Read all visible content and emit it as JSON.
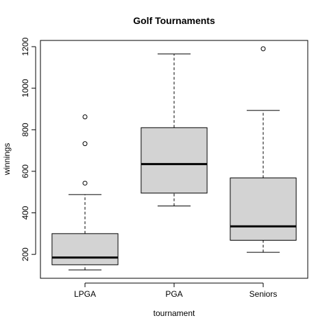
{
  "chart_data": {
    "type": "boxplot",
    "title": "Golf Tournaments",
    "xlabel": "tournament",
    "ylabel": "winnings",
    "categories": [
      "LPGA",
      "PGA",
      "Seniors"
    ],
    "ylim": [
      85,
      1230
    ],
    "yticks": [
      "200",
      "400",
      "600",
      "800",
      "1000",
      "1200"
    ],
    "boxes": [
      {
        "name": "LPGA",
        "whisker_low": 125,
        "q1": 150,
        "median": 185,
        "q3": 300,
        "whisker_high": 488,
        "outliers": [
          543,
          733,
          862
        ]
      },
      {
        "name": "PGA",
        "whisker_low": 433,
        "q1": 495,
        "median": 635,
        "q3": 810,
        "whisker_high": 1165,
        "outliers": []
      },
      {
        "name": "Seniors",
        "whisker_low": 210,
        "q1": 268,
        "median": 335,
        "q3": 568,
        "whisker_high": 893,
        "outliers": [
          1190
        ]
      }
    ],
    "grid": false,
    "colors": {
      "box_fill": "#d3d3d3",
      "stroke": "#000000"
    }
  }
}
